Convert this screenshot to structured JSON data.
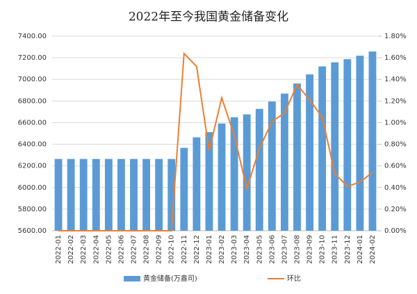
{
  "chart_data": {
    "type": "bar-line",
    "title": "2022年至今我国黄金储备变化",
    "categories": [
      "2022-01",
      "2022-02",
      "2022-03",
      "2022-04",
      "2022-05",
      "2022-06",
      "2022-07",
      "2022-08",
      "2022-09",
      "2022-10",
      "2022-11",
      "2022-12",
      "2023-01",
      "2023-02",
      "2023-03",
      "2023-04",
      "2023-05",
      "2023-06",
      "2023-07",
      "2023-08",
      "2023-09",
      "2023-10",
      "2023-11",
      "2023-12",
      "2024-01",
      "2024-02"
    ],
    "series": [
      {
        "name": "黄金储备(万盎司)",
        "type": "bar",
        "color": "#5b9bd5",
        "values": [
          6264,
          6264,
          6264,
          6264,
          6264,
          6264,
          6264,
          6264,
          6264,
          6264,
          6367,
          6464,
          6512,
          6592,
          6650,
          6676,
          6727,
          6795,
          6869,
          6962,
          7046,
          7120,
          7158,
          7187,
          7219,
          7258
        ]
      },
      {
        "name": "环比",
        "type": "line",
        "color": "#ed7d31",
        "axis": "y2",
        "values": [
          0,
          0,
          0,
          0,
          0,
          0,
          0,
          0,
          0,
          0,
          1.64,
          1.52,
          0.74,
          1.23,
          0.88,
          0.39,
          0.76,
          1.01,
          1.09,
          1.35,
          1.21,
          1.05,
          0.53,
          0.41,
          0.45,
          0.54
        ]
      }
    ],
    "ylim": [
      5600,
      7400
    ],
    "yticks": [
      {
        "value": 5600,
        "label": "5600.00"
      },
      {
        "value": 5800,
        "label": "5800.00"
      },
      {
        "value": 6000,
        "label": "6000.00"
      },
      {
        "value": 6200,
        "label": "6200.00"
      },
      {
        "value": 6400,
        "label": "6400.00"
      },
      {
        "value": 6600,
        "label": "6600.00"
      },
      {
        "value": 6800,
        "label": "6800.00"
      },
      {
        "value": 7000,
        "label": "7000.00"
      },
      {
        "value": 7200,
        "label": "7200.00"
      },
      {
        "value": 7400,
        "label": "7400.00"
      }
    ],
    "y2lim": [
      0,
      1.8
    ],
    "y2ticks": [
      {
        "value": 0,
        "label": "0.00%"
      },
      {
        "value": 0.2,
        "label": "0.20%"
      },
      {
        "value": 0.4,
        "label": "0.40%"
      },
      {
        "value": 0.6,
        "label": "0.60%"
      },
      {
        "value": 0.8,
        "label": "0.80%"
      },
      {
        "value": 1.0,
        "label": "1.00%"
      },
      {
        "value": 1.2,
        "label": "1.20%"
      },
      {
        "value": 1.4,
        "label": "1.40%"
      },
      {
        "value": 1.6,
        "label": "1.60%"
      },
      {
        "value": 1.8,
        "label": "1.80%"
      }
    ],
    "grid": true,
    "legend": "bottom"
  }
}
